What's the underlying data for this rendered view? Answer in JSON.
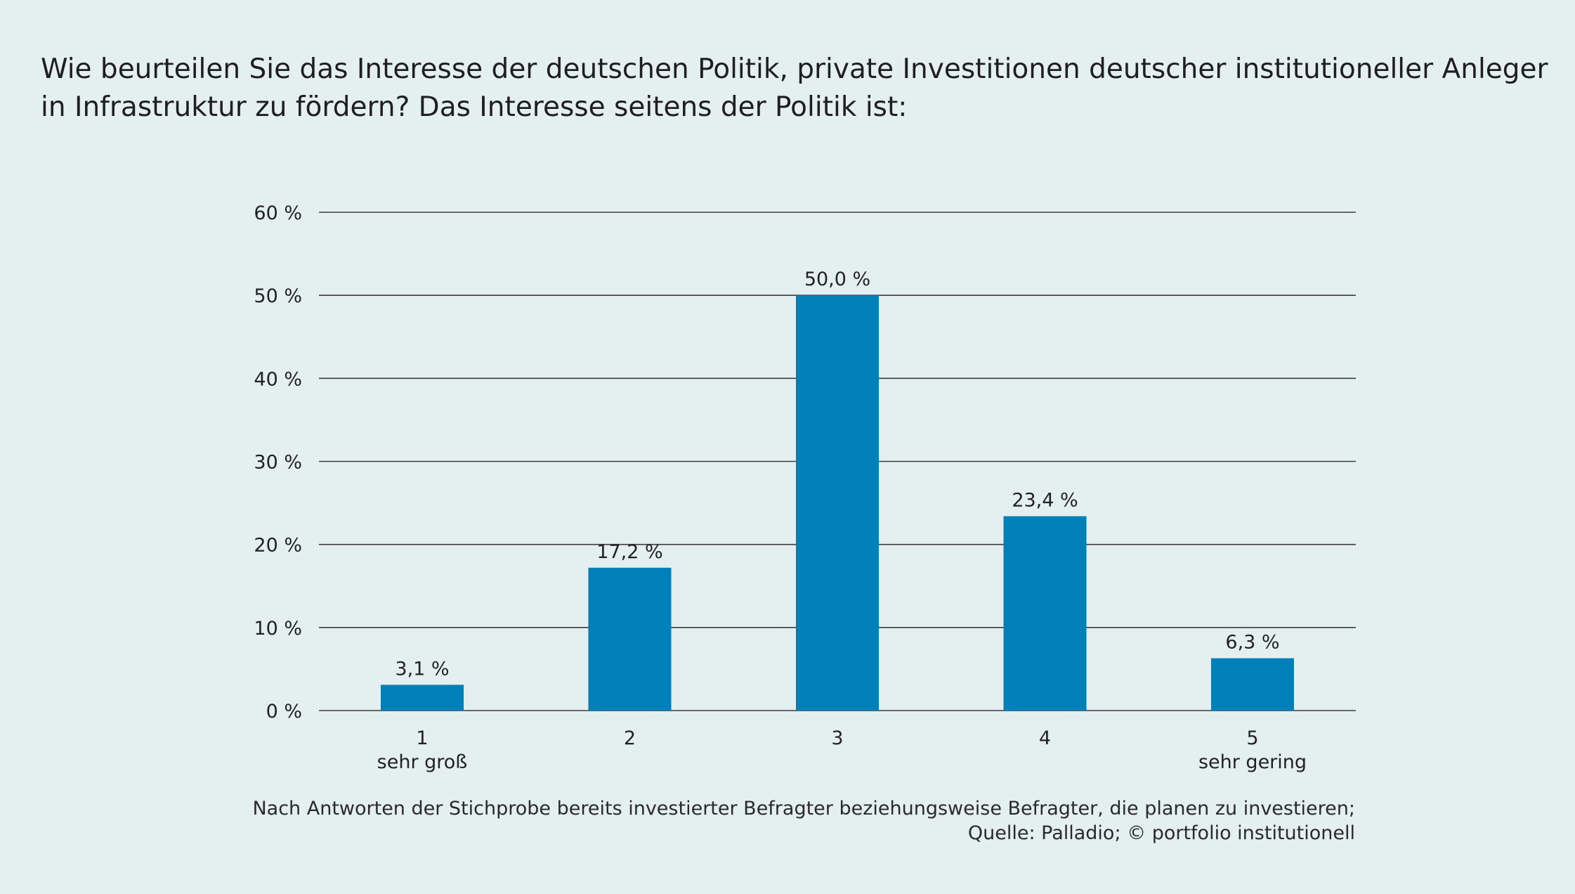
{
  "title_lines": [
    "Wie beurteilen Sie das Interesse der deutschen Politik, private Investitionen deutscher institutioneller Anleger",
    "in Infrastruktur zu fördern? Das Interesse seitens der Politik ist:"
  ],
  "footnote_lines": [
    "Nach Antworten der Stichprobe bereits investierter Befragter beziehungsweise Befragter, die planen zu investieren;",
    "Quelle: Palladio; © portfolio institutionell"
  ],
  "colors": {
    "background": "#e4eff0",
    "bar": "#0080b8",
    "gridline": "#3c3c3c",
    "text": "#222222"
  },
  "chart_data": {
    "type": "bar",
    "categories": [
      "1",
      "2",
      "3",
      "4",
      "5"
    ],
    "category_sublabels": [
      "sehr groß",
      "",
      "",
      "",
      "sehr gering"
    ],
    "values": [
      3.1,
      17.2,
      50.0,
      23.4,
      6.3
    ],
    "data_labels": [
      "3,1 %",
      "17,2 %",
      "50,0 %",
      "23,4 %",
      "6,3 %"
    ],
    "title": "",
    "xlabel": "",
    "ylabel": "",
    "ylim": [
      0,
      60
    ],
    "yticks": [
      0,
      10,
      20,
      30,
      40,
      50,
      60
    ],
    "ytick_labels": [
      "0 %",
      "10 %",
      "20 %",
      "30 %",
      "40 %",
      "50 %",
      "60 %"
    ],
    "grid": true,
    "legend": "none"
  }
}
